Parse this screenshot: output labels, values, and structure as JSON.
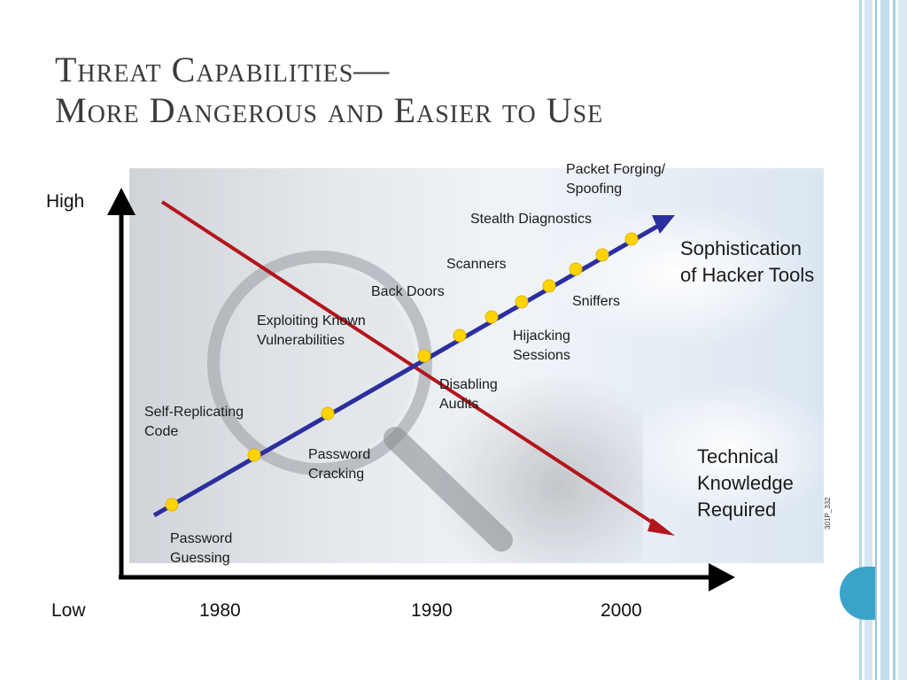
{
  "slide": {
    "title_line1": "Threat Capabilities—",
    "title_line2": "More Dangerous and Easier to Use"
  },
  "axis": {
    "y_high": "High",
    "y_low": "Low",
    "x_ticks": [
      "1980",
      "1990",
      "2000"
    ]
  },
  "lines": {
    "sophistication_label_line1": "Sophistication",
    "sophistication_label_line2": "of Hacker Tools",
    "knowledge_label_line1": "Technical",
    "knowledge_label_line2": "Knowledge",
    "knowledge_label_line3": "Required",
    "sophistication_color": "#2b2f9e",
    "knowledge_color": "#b3151b",
    "point_color": "#ffd400"
  },
  "events": [
    {
      "line1": "Password",
      "line2": "Guessing"
    },
    {
      "line1": "Self-Replicating",
      "line2": "Code"
    },
    {
      "line1": "Password",
      "line2": "Cracking"
    },
    {
      "line1": "Exploiting Known",
      "line2": "Vulnerabilities"
    },
    {
      "line1": "Disabling",
      "line2": "Audits"
    },
    {
      "line1": "Back Doors",
      "line2": ""
    },
    {
      "line1": "Hijacking",
      "line2": "Sessions"
    },
    {
      "line1": "Scanners",
      "line2": ""
    },
    {
      "line1": "Sniffers",
      "line2": ""
    },
    {
      "line1": "Stealth Diagnostics",
      "line2": ""
    },
    {
      "line1": "Packet Forging/",
      "line2": "Spoofing"
    }
  ],
  "figure_code": "301P_332"
}
